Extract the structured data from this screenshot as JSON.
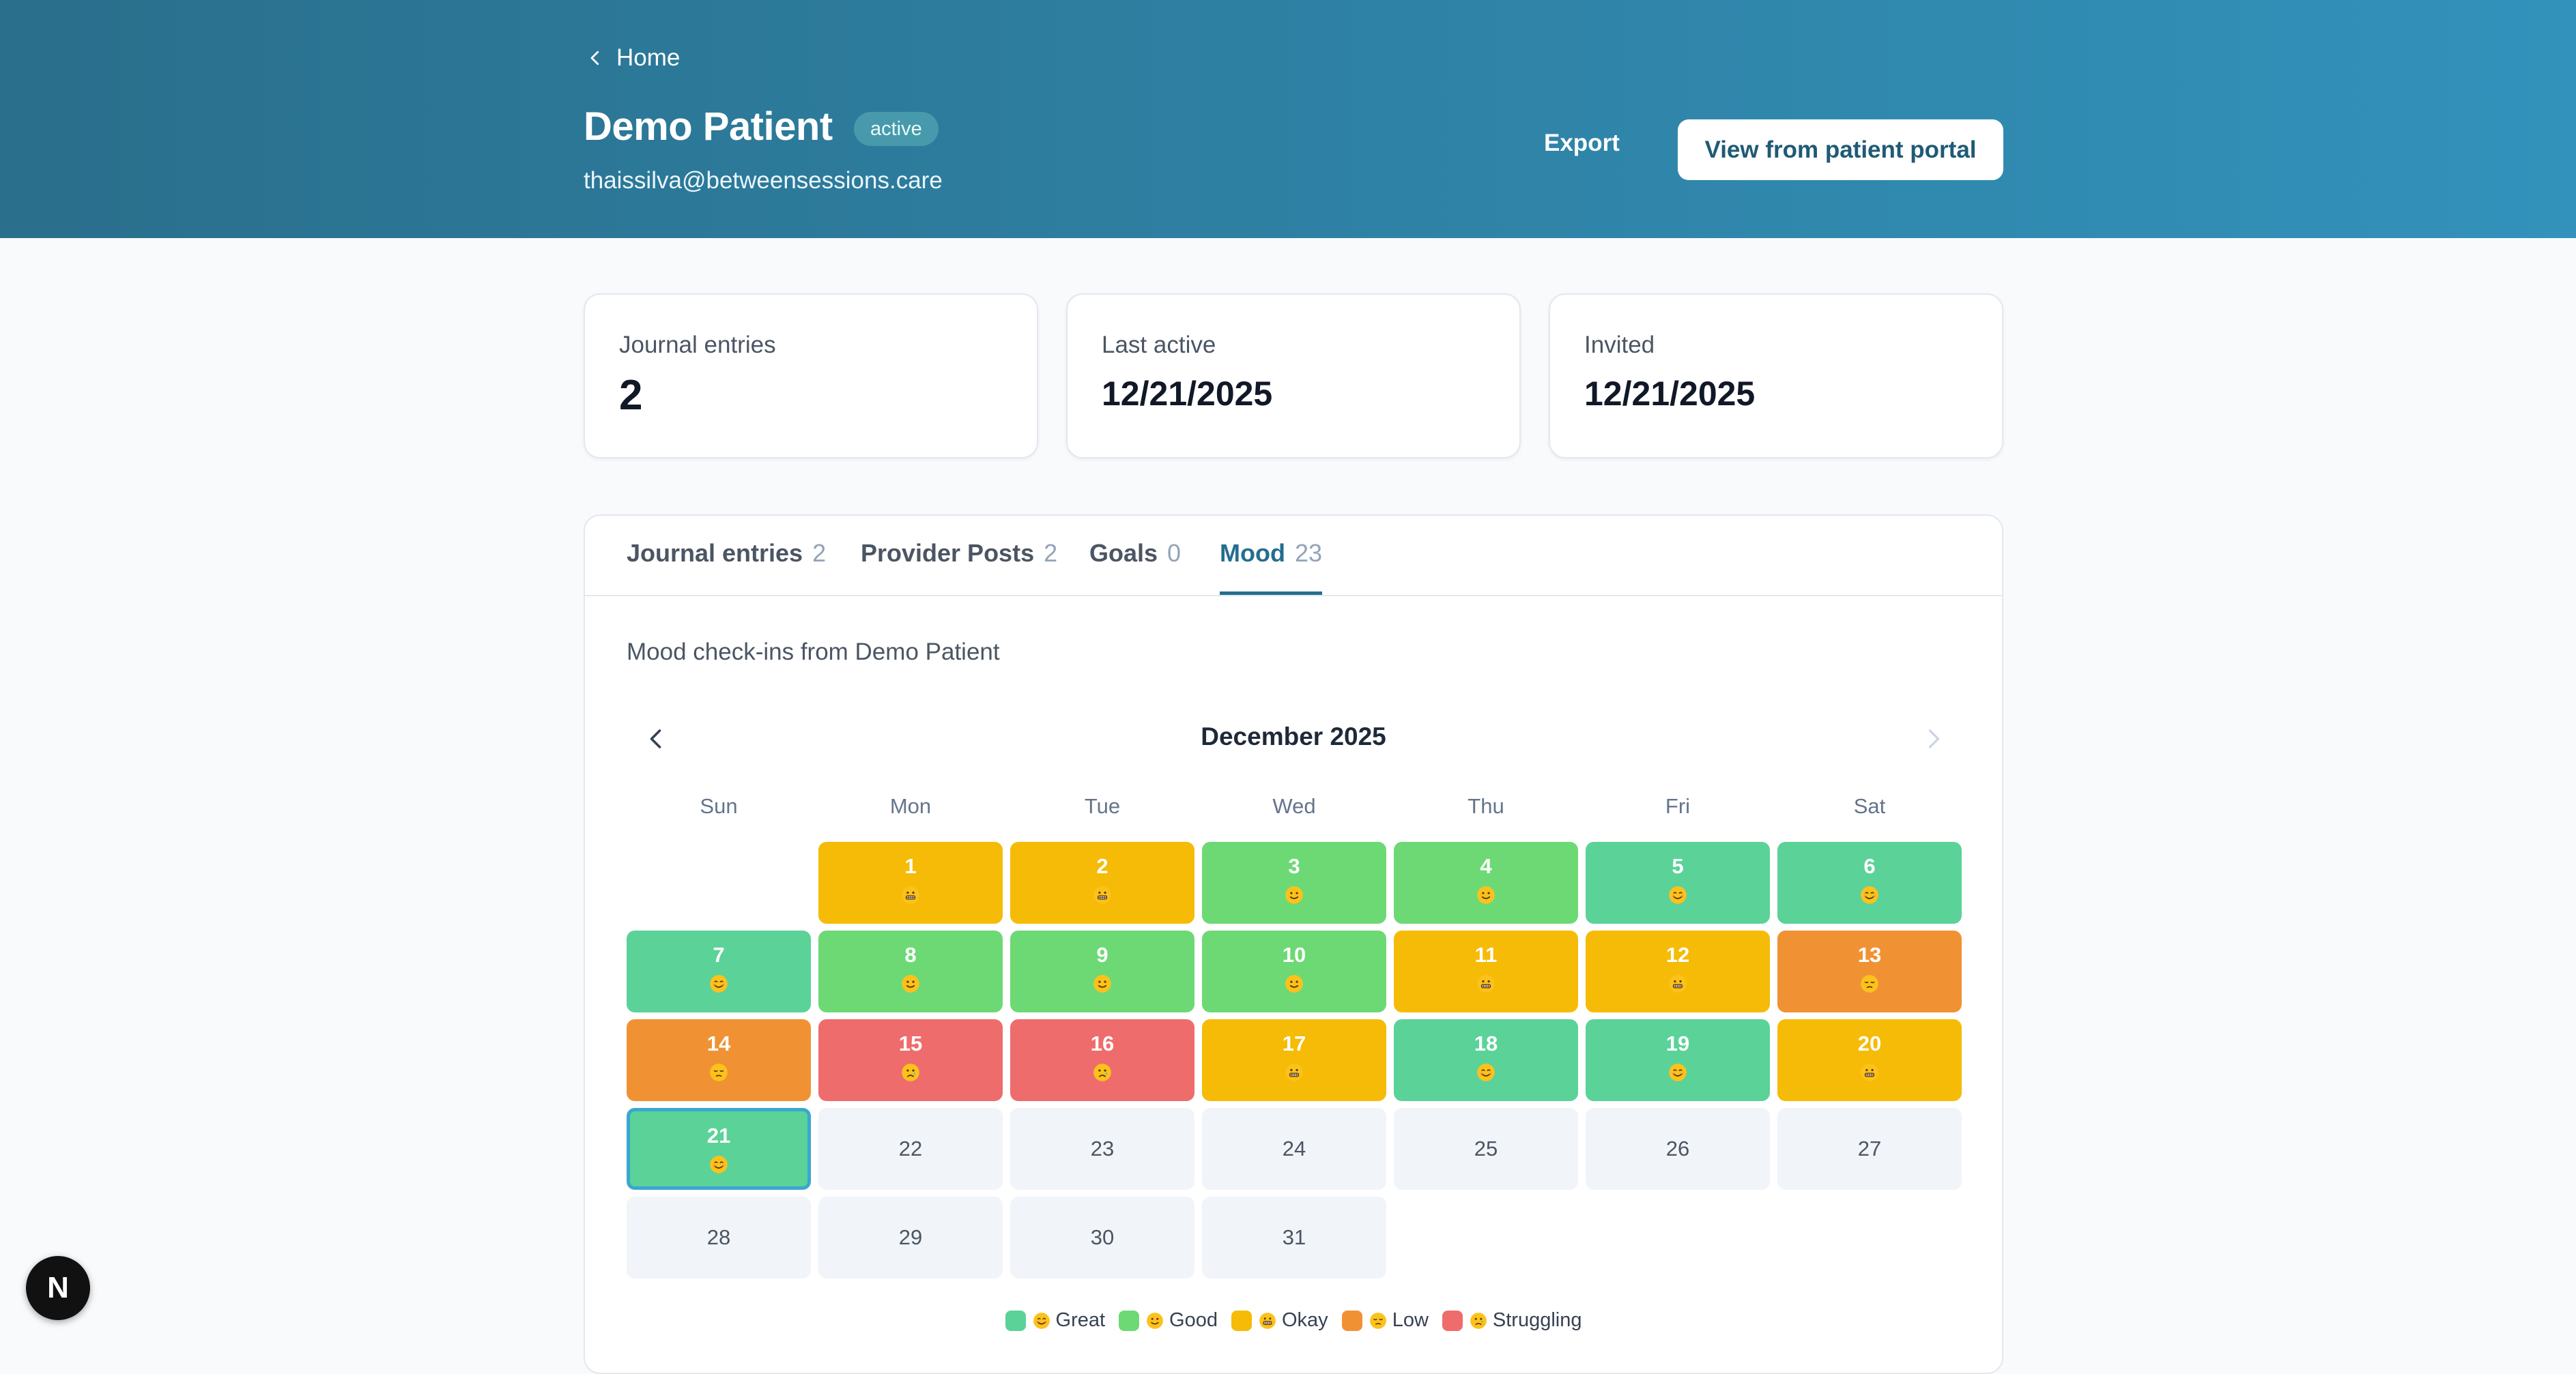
{
  "header": {
    "breadcrumb": "Home",
    "patient_name": "Demo Patient",
    "status": "active",
    "email": "thaissilva@betweensessions.care",
    "export_label": "Export",
    "portal_button_label": "View from patient portal"
  },
  "stats": [
    {
      "label": "Journal entries",
      "value": "2"
    },
    {
      "label": "Last active",
      "value": "12/21/2025"
    },
    {
      "label": "Invited",
      "value": "12/21/2025"
    }
  ],
  "tabs": [
    {
      "label": "Journal entries",
      "count": "2"
    },
    {
      "label": "Provider Posts",
      "count": "2"
    },
    {
      "label": "Goals",
      "count": "0"
    },
    {
      "label": "Mood",
      "count": "23"
    }
  ],
  "active_tab": "Mood",
  "mood": {
    "subtitle": "Mood check-ins from Demo Patient",
    "month_label": "December 2025",
    "weekdays": [
      "Sun",
      "Mon",
      "Tue",
      "Wed",
      "Thu",
      "Fri",
      "Sat"
    ],
    "first_weekday_index": 1,
    "selected_day": 21,
    "days": [
      {
        "day": "1",
        "mood": "okay"
      },
      {
        "day": "2",
        "mood": "okay"
      },
      {
        "day": "3",
        "mood": "good"
      },
      {
        "day": "4",
        "mood": "good"
      },
      {
        "day": "5",
        "mood": "great"
      },
      {
        "day": "6",
        "mood": "great"
      },
      {
        "day": "7",
        "mood": "great"
      },
      {
        "day": "8",
        "mood": "good"
      },
      {
        "day": "9",
        "mood": "good"
      },
      {
        "day": "10",
        "mood": "good"
      },
      {
        "day": "11",
        "mood": "okay"
      },
      {
        "day": "12",
        "mood": "okay"
      },
      {
        "day": "13",
        "mood": "low"
      },
      {
        "day": "14",
        "mood": "low"
      },
      {
        "day": "15",
        "mood": "struggling"
      },
      {
        "day": "16",
        "mood": "struggling"
      },
      {
        "day": "17",
        "mood": "okay"
      },
      {
        "day": "18",
        "mood": "great"
      },
      {
        "day": "19",
        "mood": "great"
      },
      {
        "day": "20",
        "mood": "okay"
      },
      {
        "day": "21",
        "mood": "great"
      },
      {
        "day": "22",
        "mood": null
      },
      {
        "day": "23",
        "mood": null
      },
      {
        "day": "24",
        "mood": null
      },
      {
        "day": "25",
        "mood": null
      },
      {
        "day": "26",
        "mood": null
      },
      {
        "day": "27",
        "mood": null
      },
      {
        "day": "28",
        "mood": null
      },
      {
        "day": "29",
        "mood": null
      },
      {
        "day": "30",
        "mood": null
      },
      {
        "day": "31",
        "mood": null
      }
    ],
    "legend": [
      {
        "key": "great",
        "label": "Great",
        "color": "#5bd298",
        "icon": "smile-icon"
      },
      {
        "key": "good",
        "label": "Good",
        "color": "#6dd975",
        "icon": "slight-smile-icon"
      },
      {
        "key": "okay",
        "label": "Okay",
        "color": "#f5bb06",
        "icon": "grimace-icon"
      },
      {
        "key": "low",
        "label": "Low",
        "color": "#f09234",
        "icon": "pensive-icon"
      },
      {
        "key": "struggling",
        "label": "Struggling",
        "color": "#ef6c6c",
        "icon": "crying-icon"
      }
    ],
    "empty_color": "#f1f4f8"
  },
  "dev_badge_letter": "N"
}
